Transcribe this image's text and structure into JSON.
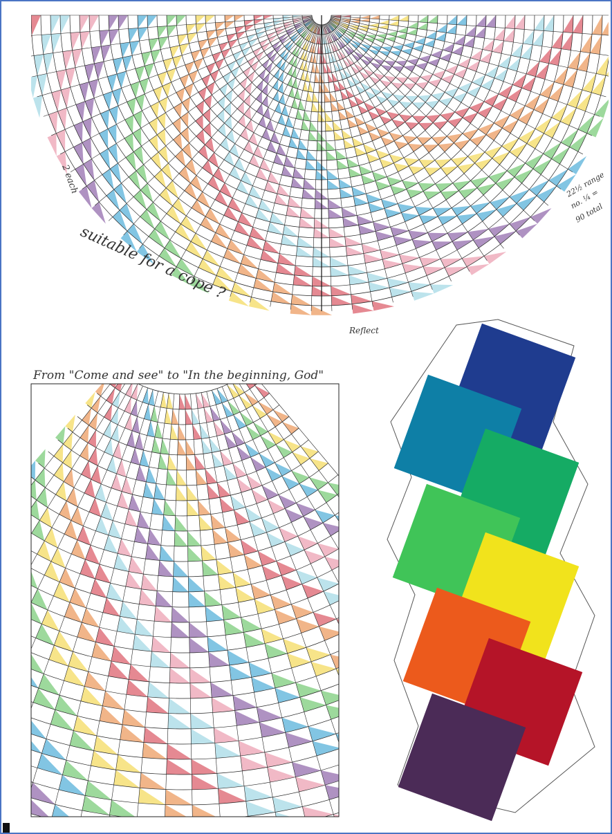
{
  "annotations": {
    "cope_question": "suitable for a cope ?",
    "bottom_caption": "From \"Come and see\" to \"In the beginning, God\"",
    "reflect": "Reflect",
    "two_each": "2 each",
    "range_note": "22½ range",
    "quarter_note": "no. ¼ =",
    "total_note": "90 total"
  }
}
